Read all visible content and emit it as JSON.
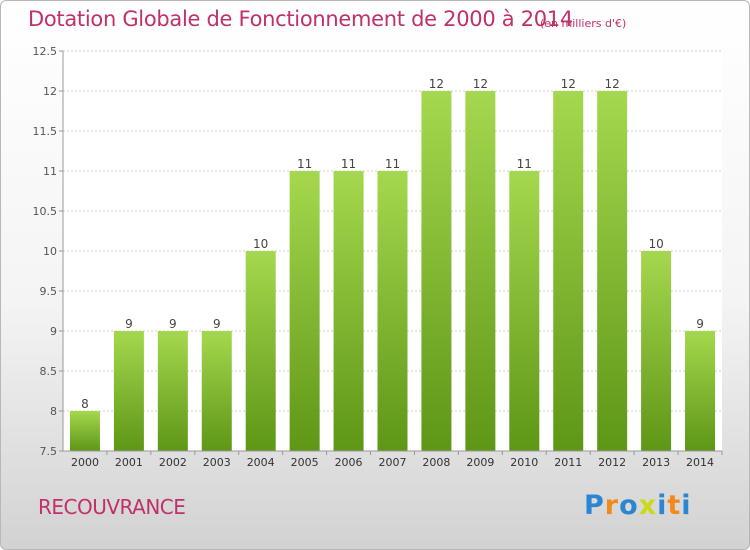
{
  "title": "Dotation Globale de Fonctionnement de 2000 à 2014",
  "unit": "(en milliers d'€)",
  "commune": "RECOUVRANCE",
  "logo": {
    "letters": [
      "P",
      "r",
      "o",
      "x",
      "i",
      "t",
      "i"
    ],
    "colors": [
      "#2a86d1",
      "#f08a1c",
      "#2a86d1",
      "#c8da18",
      "#2a86d1",
      "#f08a1c",
      "#2a86d1"
    ]
  },
  "chart_data": {
    "type": "bar",
    "categories": [
      "2000",
      "2001",
      "2002",
      "2003",
      "2004",
      "2005",
      "2006",
      "2007",
      "2008",
      "2009",
      "2010",
      "2011",
      "2012",
      "2013",
      "2014"
    ],
    "values": [
      8,
      9,
      9,
      9,
      10,
      11,
      11,
      11,
      12,
      12,
      11,
      12,
      12,
      10,
      9
    ],
    "data_labels": [
      "8",
      "9",
      "9",
      "9",
      "10",
      "11",
      "11",
      "11",
      "12",
      "12",
      "11",
      "12",
      "12",
      "10",
      "9"
    ],
    "yticks": [
      "7.5",
      "8",
      "8.5",
      "9",
      "9.5",
      "10",
      "10.5",
      "11",
      "11.5",
      "12",
      "12.5"
    ],
    "ylim": [
      7.5,
      12.5
    ],
    "grid": "horizontal",
    "bar_color": "#8cc63f"
  }
}
